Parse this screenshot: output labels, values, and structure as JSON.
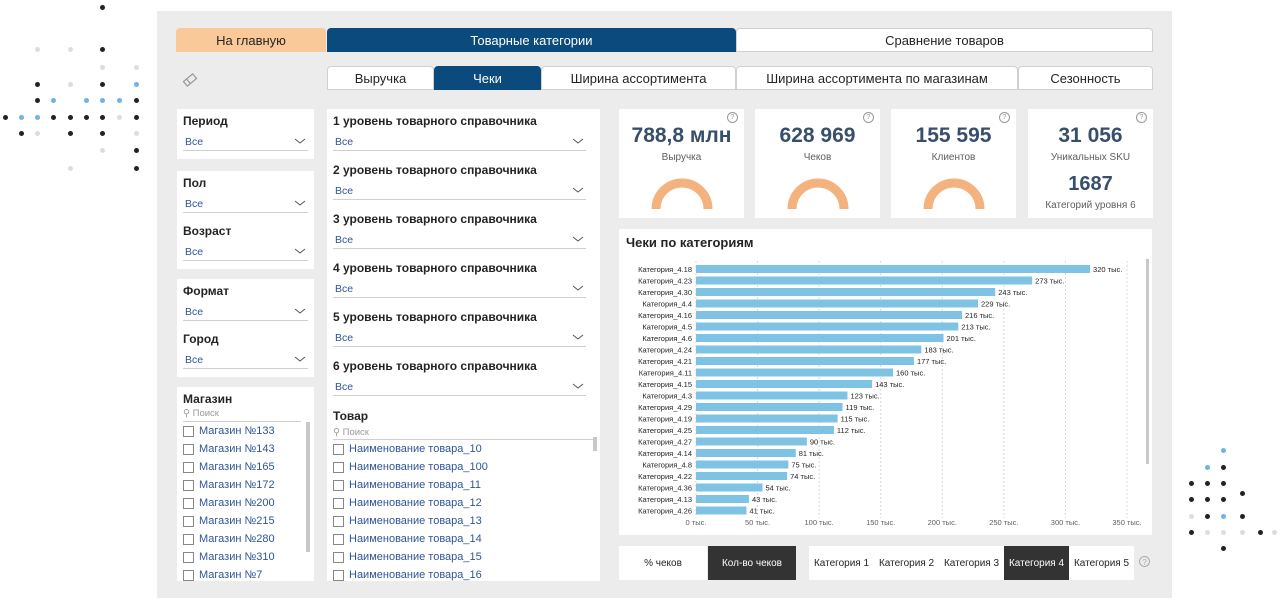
{
  "nav": {
    "home": "На главную",
    "main_tabs": [
      "Товарные категории",
      "Сравнение товаров"
    ],
    "sub_tabs": [
      "Выручка",
      "Чеки",
      "Ширина ассортимента",
      "Ширина ассортимента по магазинам",
      "Сезонность"
    ],
    "active_sub_tab": "Чеки"
  },
  "filters_left": {
    "period": {
      "label": "Период",
      "value": "Все"
    },
    "sex": {
      "label": "Пол",
      "value": "Все"
    },
    "age": {
      "label": "Возраст",
      "value": "Все"
    },
    "format": {
      "label": "Формат",
      "value": "Все"
    },
    "city": {
      "label": "Город",
      "value": "Все"
    }
  },
  "stores": {
    "label": "Магазин",
    "search_placeholder": "Поиск",
    "items": [
      "Магазин №133",
      "Магазин №143",
      "Магазин №165",
      "Магазин №172",
      "Магазин №200",
      "Магазин №215",
      "Магазин №280",
      "Магазин №310",
      "Магазин №7"
    ]
  },
  "levels": [
    {
      "label": "1 уровень товарного справочника",
      "value": "Все"
    },
    {
      "label": "2 уровень товарного справочника",
      "value": "Все"
    },
    {
      "label": "3 уровень товарного справочника",
      "value": "Все"
    },
    {
      "label": "4 уровень товарного справочника",
      "value": "Все"
    },
    {
      "label": "5 уровень товарного справочника",
      "value": "Все"
    },
    {
      "label": "6 уровень товарного справочника",
      "value": "Все"
    }
  ],
  "products": {
    "label": "Товар",
    "search_placeholder": "Поиск",
    "items": [
      "Наименование товара_10",
      "Наименование товара_100",
      "Наименование товара_11",
      "Наименование товара_12",
      "Наименование товара_13",
      "Наименование товара_14",
      "Наименование товара_15",
      "Наименование товара_16"
    ]
  },
  "kpis": [
    {
      "value": "788,8 млн",
      "label": "Выручка",
      "pct": "100%"
    },
    {
      "value": "628 969",
      "label": "Чеков",
      "pct": "100%"
    },
    {
      "value": "155 595",
      "label": "Клиентов",
      "pct": "100%"
    },
    {
      "value": "31 056",
      "label": "Уникальных SKU",
      "value2": "1687",
      "label2": "Категорий уровня 6"
    }
  ],
  "chart_data": {
    "type": "bar",
    "orientation": "horizontal",
    "title": "Чеки по категориям",
    "categories": [
      "Категория_4.18",
      "Категория_4.23",
      "Категория_4.30",
      "Категория_4.4",
      "Категория_4.16",
      "Категория_4.5",
      "Категория_4.6",
      "Категория_4.24",
      "Категория_4.21",
      "Категория_4.11",
      "Категория_4.15",
      "Категория_4.3",
      "Категория_4.29",
      "Категория_4.19",
      "Категория_4.25",
      "Категория_4.27",
      "Категория_4.14",
      "Категория_4.8",
      "Категория_4.22",
      "Категория_4.36",
      "Категория_4.13",
      "Категория_4.26"
    ],
    "values": [
      320,
      273,
      243,
      229,
      216,
      213,
      201,
      183,
      177,
      160,
      143,
      123,
      119,
      115,
      112,
      90,
      81,
      75,
      74,
      54,
      43,
      41
    ],
    "data_labels": [
      "320 тыс.",
      "273 тыс.",
      "243 тыс.",
      "229 тыс.",
      "216 тыс.",
      "213 тыс.",
      "201 тыс.",
      "183 тыс.",
      "177 тыс.",
      "160 тыс.",
      "143 тыс.",
      "123 тыс.",
      "119 тыс.",
      "115 тыс.",
      "112 тыс.",
      "90 тыс.",
      "81 тыс.",
      "75 тыс.",
      "74 тыс.",
      "54 тыс.",
      "43 тыс.",
      "41 тыс."
    ],
    "xticks": [
      "0 тыс.",
      "50 тыс.",
      "100 тыс.",
      "150 тыс.",
      "200 тыс.",
      "250 тыс.",
      "300 тыс.",
      "350 тыс."
    ],
    "xlim": [
      0,
      350
    ],
    "bar_color": "#7fc3e4",
    "grid": true
  },
  "toggle": {
    "options": [
      "% чеков",
      "Кол-во чеков"
    ],
    "active": 1
  },
  "level_tabs": {
    "options": [
      "Категория 1",
      "Категория 2",
      "Категория 3",
      "Категория 4",
      "Категория 5"
    ],
    "active": 3
  },
  "colors": {
    "accent": "#0b4a7c",
    "home": "#f9c99a",
    "gauge": "#f4b27f",
    "bar": "#7fc3e4"
  }
}
